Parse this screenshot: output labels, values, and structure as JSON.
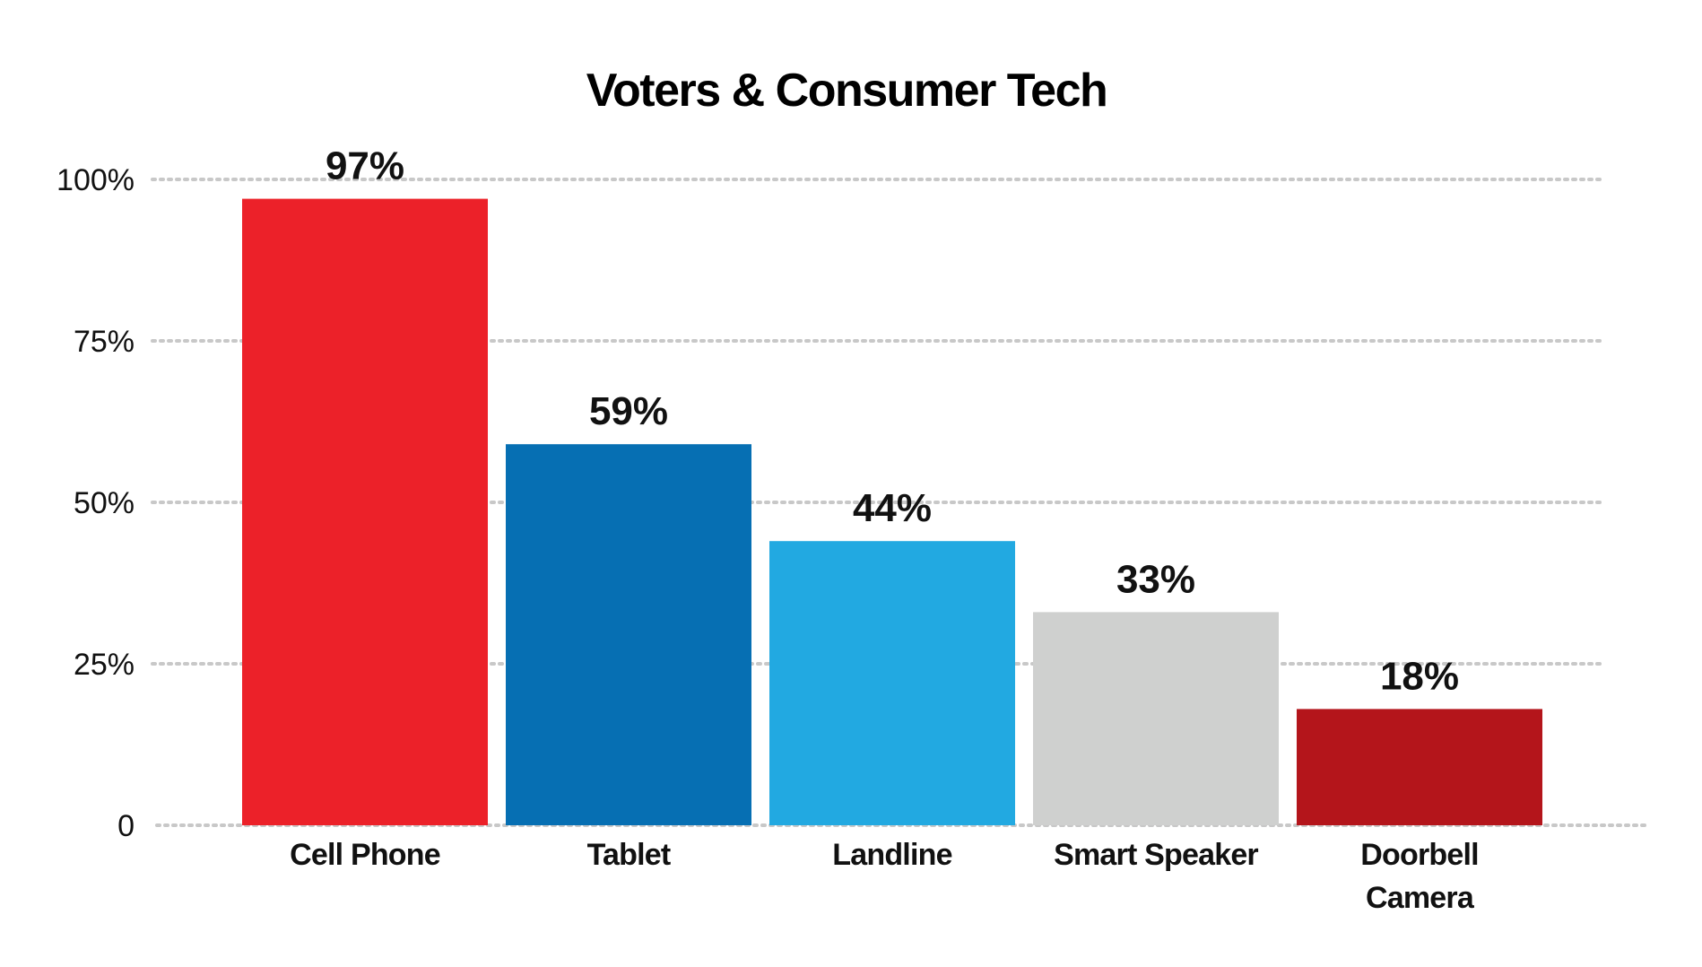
{
  "chart_data": {
    "type": "bar",
    "title": "Voters & Consumer Tech",
    "xlabel": "",
    "ylabel": "",
    "ylim": [
      0,
      100
    ],
    "grid": true,
    "y_ticks": [
      {
        "value": 0,
        "label": "0"
      },
      {
        "value": 25,
        "label": "25%"
      },
      {
        "value": 50,
        "label": "50%"
      },
      {
        "value": 75,
        "label": "75%"
      },
      {
        "value": 100,
        "label": "100%"
      }
    ],
    "categories": [
      [
        "Cell Phone"
      ],
      [
        "Tablet"
      ],
      [
        "Landline"
      ],
      [
        "Smart Speaker"
      ],
      [
        "Doorbell",
        "Camera"
      ]
    ],
    "values": [
      97,
      59,
      44,
      33,
      18
    ],
    "value_labels": [
      "97%",
      "59%",
      "44%",
      "33%",
      "18%"
    ],
    "colors": [
      "#ec2129",
      "#066fb3",
      "#22a9e1",
      "#cfd0cf",
      "#b4151b"
    ]
  }
}
